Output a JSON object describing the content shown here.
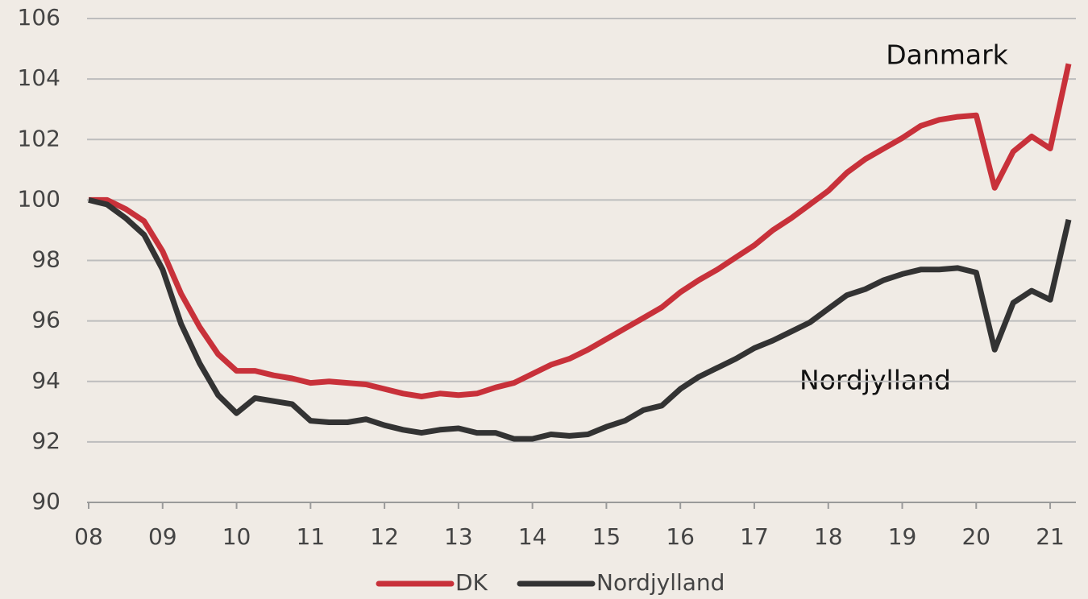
{
  "chart_data": {
    "type": "line",
    "categories": [
      "08",
      null,
      null,
      null,
      "09",
      null,
      null,
      null,
      "10",
      null,
      null,
      null,
      "11",
      null,
      null,
      null,
      "12",
      null,
      null,
      null,
      "13",
      null,
      null,
      null,
      "14",
      null,
      null,
      null,
      "15",
      null,
      null,
      null,
      "16",
      null,
      null,
      null,
      "17",
      null,
      null,
      null,
      "18",
      null,
      null,
      null,
      "19",
      null,
      null,
      null,
      "20",
      null,
      null,
      null,
      "21",
      null
    ],
    "series": [
      {
        "name": "DK",
        "color": "#c8313a",
        "values": [
          100,
          100.0,
          99.7,
          99.3,
          98.3,
          96.9,
          95.8,
          94.9,
          94.35,
          94.35,
          94.2,
          94.1,
          93.95,
          94.0,
          93.95,
          93.9,
          93.75,
          93.6,
          93.5,
          93.6,
          93.55,
          93.6,
          93.8,
          93.95,
          94.25,
          94.55,
          94.75,
          95.05,
          95.4,
          95.75,
          96.1,
          96.45,
          96.95,
          97.35,
          97.7,
          98.1,
          98.5,
          99.0,
          99.4,
          99.85,
          100.3,
          100.9,
          101.35,
          101.7,
          102.05,
          102.45,
          102.65,
          102.75,
          102.8,
          100.4,
          101.6,
          102.1,
          101.7,
          104.5
        ]
      },
      {
        "name": "Nordjylland",
        "color": "#333333",
        "values": [
          100,
          99.85,
          99.4,
          98.85,
          97.7,
          95.9,
          94.6,
          93.55,
          92.95,
          93.45,
          93.35,
          93.25,
          92.7,
          92.65,
          92.65,
          92.75,
          92.55,
          92.4,
          92.3,
          92.4,
          92.45,
          92.3,
          92.3,
          92.1,
          92.1,
          92.25,
          92.2,
          92.25,
          92.5,
          92.7,
          93.05,
          93.2,
          93.75,
          94.15,
          94.45,
          94.75,
          95.1,
          95.35,
          95.65,
          95.95,
          96.4,
          96.85,
          97.05,
          97.35,
          97.55,
          97.7,
          97.7,
          97.75,
          97.6,
          95.05,
          96.6,
          97.0,
          96.7,
          99.35
        ]
      }
    ],
    "annotations": [
      "Danmark",
      "Nordjylland"
    ],
    "ylim": [
      90,
      106
    ],
    "yticks": [
      90,
      92,
      94,
      96,
      98,
      100,
      102,
      104,
      106
    ],
    "grid": true,
    "legend": "bottom"
  }
}
